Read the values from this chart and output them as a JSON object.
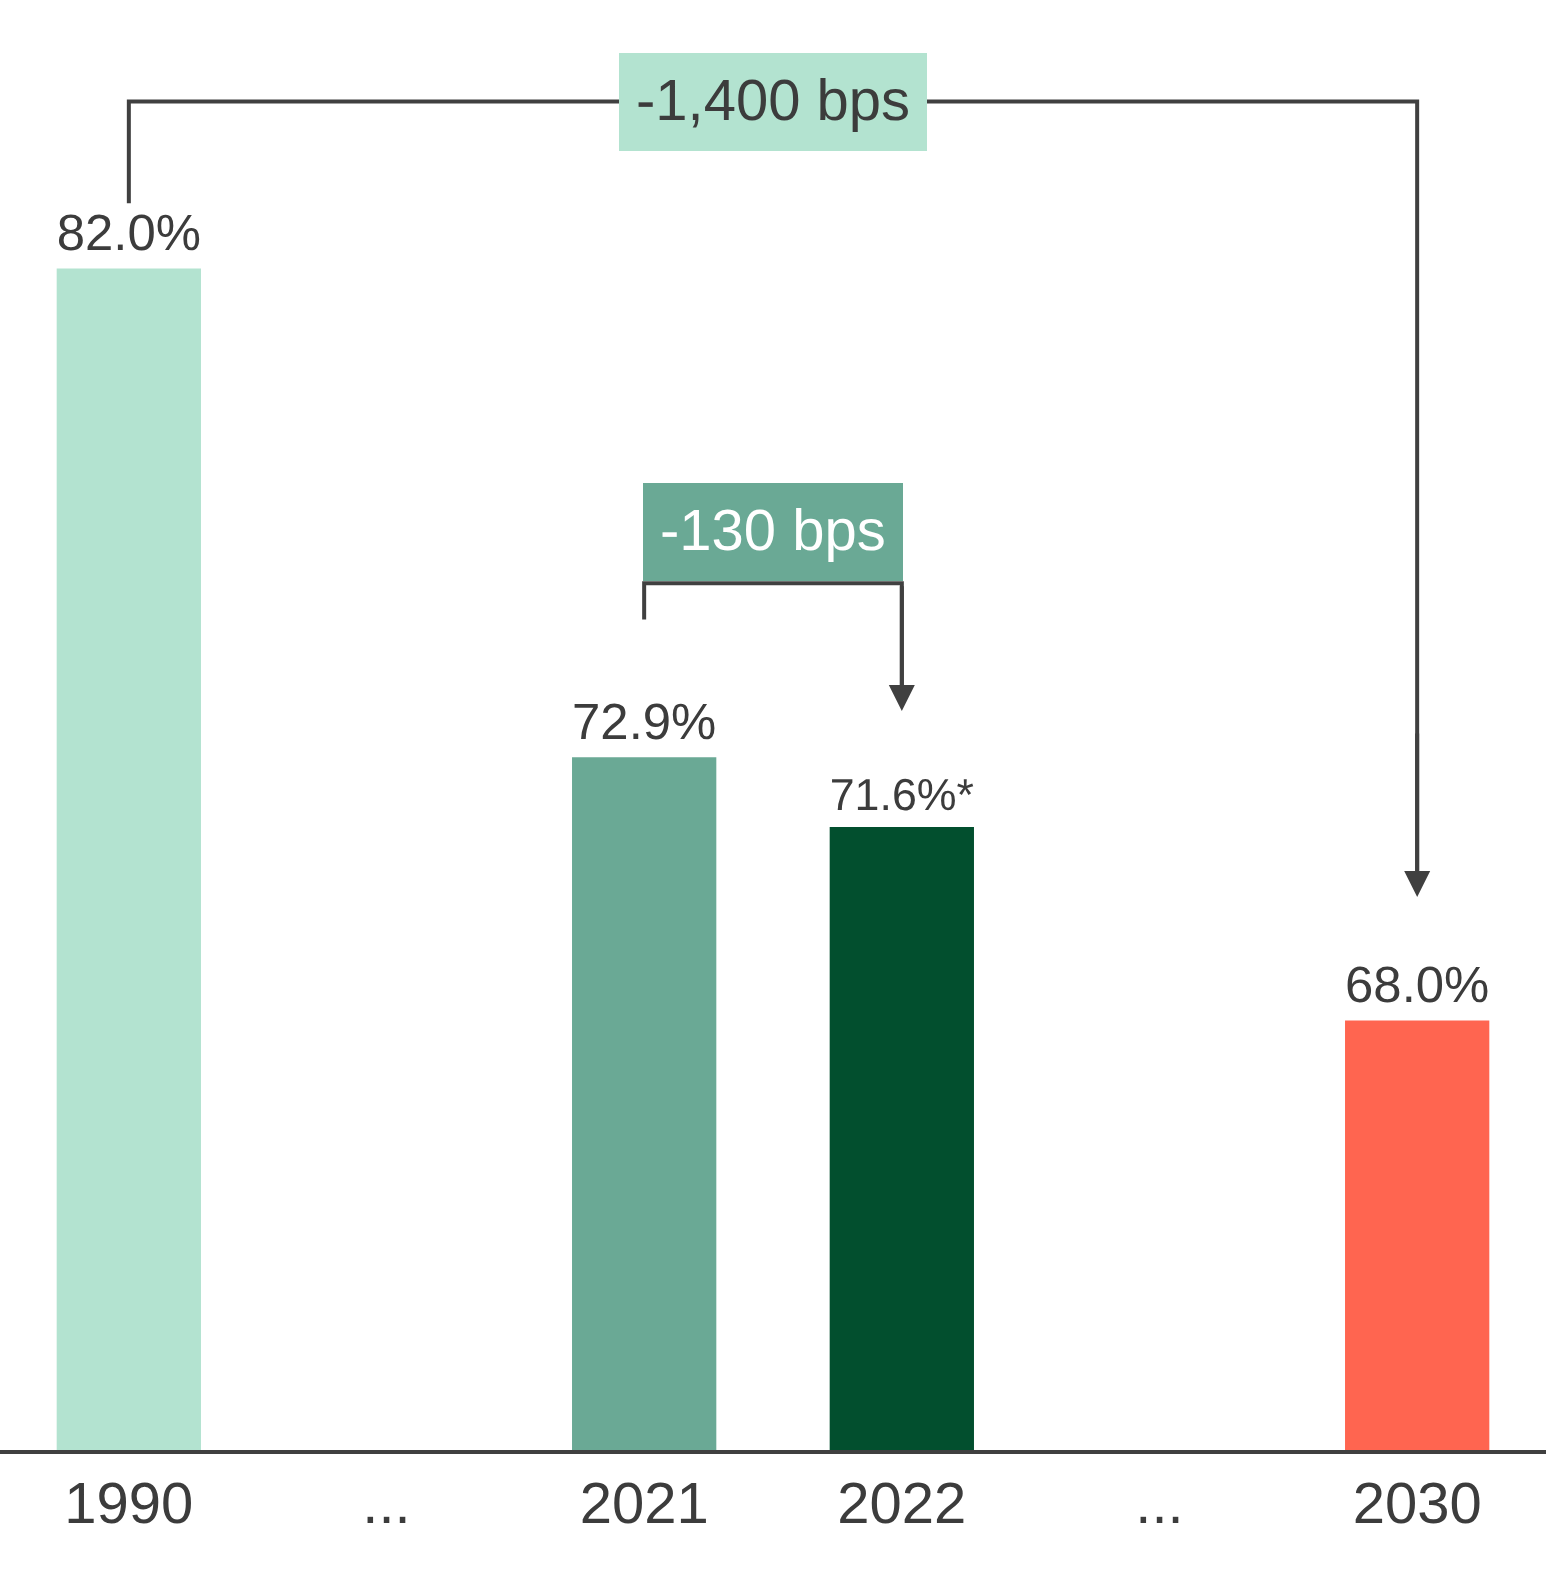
{
  "chart_data": {
    "type": "bar",
    "categories": [
      "1990",
      "...",
      "2021",
      "2022",
      "...",
      "2030"
    ],
    "values": [
      82.0,
      null,
      72.9,
      71.6,
      null,
      68.0
    ],
    "colors": [
      "#b3e3d0",
      "#b3e3d0",
      "#6aa995",
      "#024f2e",
      "#ff6550",
      "#ff6550"
    ],
    "value_labels": [
      "82.0%",
      null,
      "72.9%",
      "71.6%*",
      null,
      "68.0%"
    ],
    "ylim": [
      60,
      87
    ],
    "tick_labels": "x",
    "legend": false,
    "annotations": [
      "-1,400 bps",
      "-130 bps"
    ]
  }
}
